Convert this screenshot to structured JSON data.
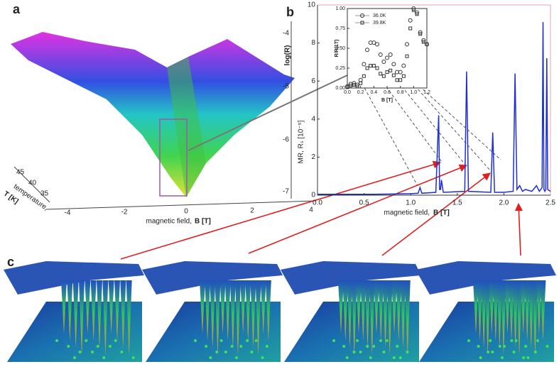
{
  "panel_a": {
    "label": "a",
    "z_label": "log(R)",
    "x_label": "magnetic field,",
    "x_label_bold": "B [T]",
    "t_label": "temperature,",
    "t_label_bold": "T [K]",
    "x_ticks": [
      "-4",
      "-2",
      "0",
      "2",
      "4"
    ],
    "z_ticks": [
      "-4",
      "-5",
      "-6",
      "-7"
    ],
    "t_ticks": [
      "45",
      "40",
      "35"
    ]
  },
  "panel_c": {
    "label": "c"
  },
  "chart_data": [
    {
      "type": "line",
      "label": "b",
      "x_label": "magnetic field,",
      "x_label_bold": "B [T]",
      "y_label": "MR, Rₛ [10⁻⁵]",
      "color": "#1f2fd0",
      "xlim": [
        0,
        2.5
      ],
      "xticks": [
        {
          "value": 0,
          "label": "0.0"
        },
        0.5,
        {
          "value": 1,
          "label": "1.0"
        },
        1.5,
        {
          "value": 2,
          "label": "2.0"
        },
        2.5
      ],
      "ylim": [
        0,
        10
      ],
      "yticks": [
        0,
        2,
        4,
        6,
        8,
        10
      ],
      "x": [
        0,
        0.2,
        0.4,
        0.6,
        0.8,
        1.0,
        1.08,
        1.1,
        1.12,
        1.27,
        1.3,
        1.31,
        1.32,
        1.33,
        1.35,
        1.58,
        1.6,
        1.62,
        1.86,
        1.88,
        1.9,
        2.0,
        2.1,
        2.12,
        2.14,
        2.17,
        2.2,
        2.23,
        2.3,
        2.35,
        2.38,
        2.41,
        2.42,
        2.43,
        2.44,
        2.45,
        2.46,
        2.47,
        2.5
      ],
      "values": [
        0.05,
        0.05,
        0.05,
        0.05,
        0.06,
        0.08,
        0.1,
        0.4,
        0.1,
        0.15,
        4.2,
        0.3,
        0.3,
        0.8,
        0.15,
        0.2,
        6.5,
        0.2,
        0.15,
        3.3,
        0.15,
        0.15,
        0.2,
        6.4,
        0.3,
        0.5,
        0.2,
        0.3,
        0.2,
        0.5,
        0.2,
        0.4,
        9.1,
        0.3,
        0.2,
        0.3,
        7.2,
        0.3,
        0.2
      ]
    },
    {
      "type": "scatter",
      "x_label": "B [T]",
      "y_label": "R/R(1T)",
      "xlim": [
        0,
        1.2
      ],
      "xticks": [
        {
          "value": 0,
          "label": "0.0"
        },
        0.2,
        0.4,
        0.6,
        0.8,
        {
          "value": 1,
          "label": "1.0"
        },
        1.2
      ],
      "ylim": [
        0,
        1
      ],
      "yticks": [
        {
          "value": 0,
          "label": "0.00"
        },
        0.25,
        {
          "value": 0.5,
          "label": "0.50"
        },
        0.75,
        {
          "value": 1,
          "label": "1.00"
        }
      ],
      "x": [
        0,
        0.05,
        0.1,
        0.15,
        0.2,
        0.25,
        0.3,
        0.35,
        0.4,
        0.45,
        0.5,
        0.55,
        0.6,
        0.65,
        0.7,
        0.75,
        0.8,
        0.85,
        0.9,
        0.95,
        1.0,
        1.05,
        1.1,
        1.15,
        1.2
      ],
      "series": [
        {
          "name": "36.0K",
          "marker": "circle",
          "color": "#333333",
          "values": [
            0.02,
            0.05,
            0.06,
            0.04,
            0.1,
            0.3,
            0.48,
            0.57,
            0.57,
            0.55,
            0.42,
            0.33,
            0.38,
            0.42,
            0.3,
            0.2,
            0.2,
            0.28,
            0.55,
            0.85,
            1.0,
            0.95,
            0.7,
            0.6,
            0.55
          ]
        },
        {
          "name": "39.8K",
          "marker": "square",
          "color": "#333333",
          "values": [
            0.01,
            0.03,
            0.04,
            0.02,
            0.06,
            0.15,
            0.25,
            0.28,
            0.28,
            0.25,
            0.18,
            0.15,
            0.2,
            0.22,
            0.16,
            0.1,
            0.1,
            0.15,
            0.4,
            0.75,
            0.98,
            0.93,
            0.68,
            0.58,
            0.55
          ]
        }
      ]
    }
  ]
}
